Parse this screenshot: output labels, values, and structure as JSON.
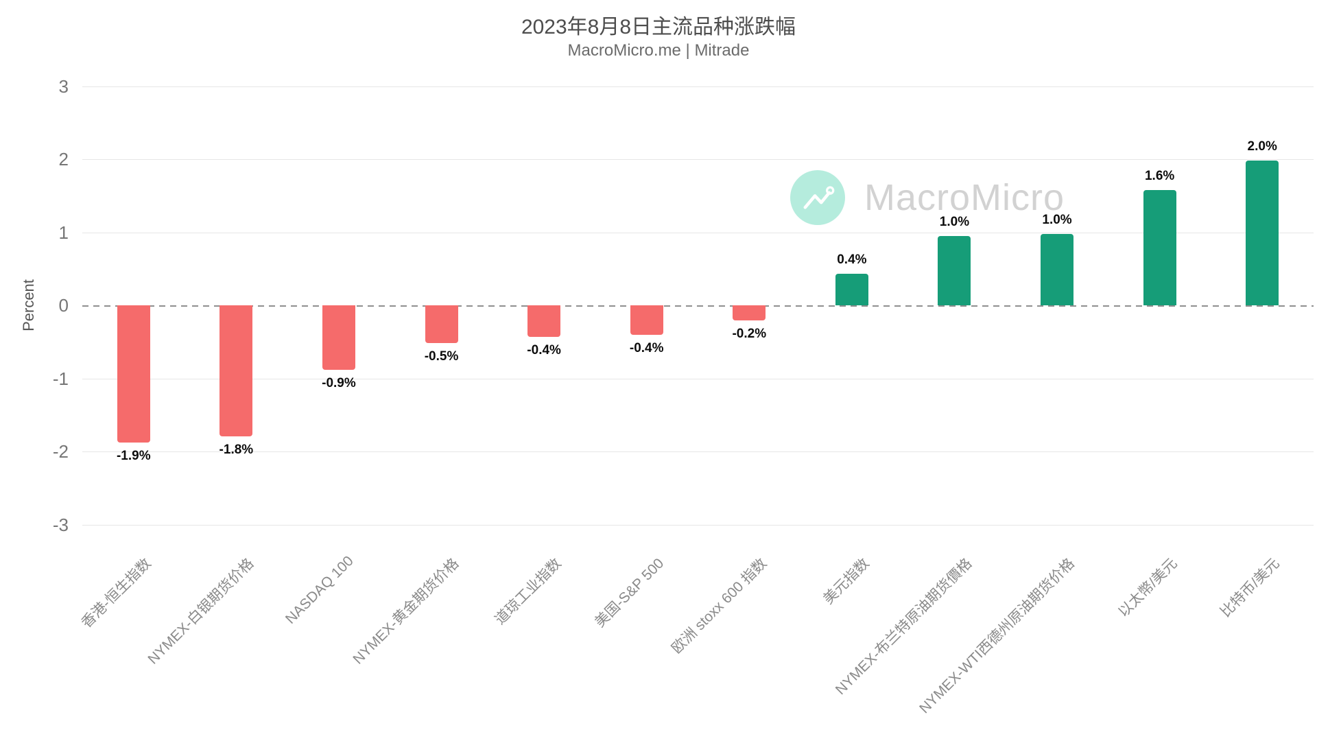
{
  "title": "2023年8月8日主流品种涨跌幅",
  "subtitle": "MacroMicro.me | Mitrade",
  "watermark": {
    "brand": "MacroMicro",
    "logo_icon": "line-chart-icon",
    "circle_color": "#b5ecdd",
    "text_color": "#d2d2d2"
  },
  "chart_data": {
    "type": "bar",
    "title": "2023年8月8日主流品种涨跌幅",
    "subtitle": "MacroMicro.me | Mitrade",
    "xlabel": "",
    "ylabel": "Percent",
    "ylim": [
      -3,
      3
    ],
    "yticks": [
      "3",
      "2",
      "1",
      "0",
      "-1",
      "-2",
      "-3"
    ],
    "grid": true,
    "zero_line_style": "dashed",
    "legend": "none",
    "categories": [
      "香港-恒生指数",
      "NYMEX-白银期货价格",
      "NASDAQ 100",
      "NYMEX-黄金期货价格",
      "道琼工业指数",
      "美国-S&P 500",
      "欧洲 stoxx 600 指数",
      "美元指数",
      "NYMEX-布兰特原油期货價格",
      "NYMEX-WTI西德州原油期货价格",
      "以太幣/美元",
      "比特币/美元"
    ],
    "values": [
      -1.9,
      -1.8,
      -0.9,
      -0.5,
      -0.4,
      -0.4,
      -0.2,
      0.4,
      1.0,
      1.0,
      1.6,
      2.0
    ],
    "labels": [
      "-1.9%",
      "-1.8%",
      "-0.9%",
      "-0.5%",
      "-0.4%",
      "-0.4%",
      "-0.2%",
      "0.4%",
      "1.0%",
      "1.0%",
      "1.6%",
      "2.0%"
    ],
    "plot_values": [
      -1.88,
      -1.79,
      -0.88,
      -0.52,
      -0.43,
      -0.4,
      -0.21,
      0.43,
      0.95,
      0.98,
      1.58,
      1.98
    ],
    "colors": {
      "positive": "#169d78",
      "negative": "#f56b6b"
    }
  }
}
